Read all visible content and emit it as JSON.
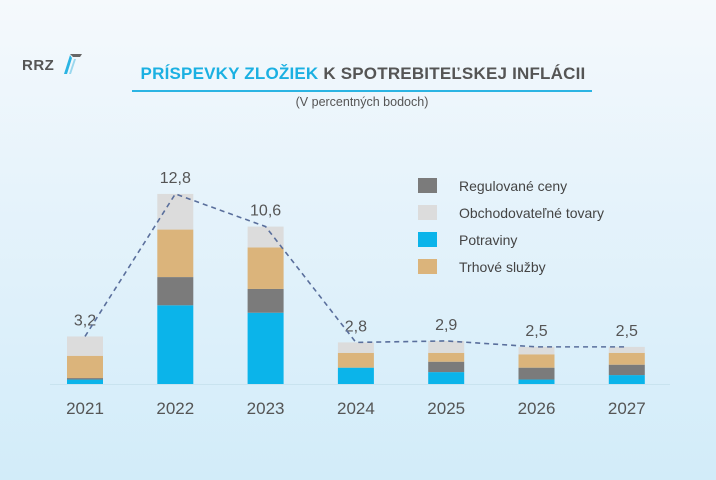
{
  "logo": {
    "text": "RRZ"
  },
  "title": {
    "highlight": "PRÍSPEVKY ZLOŽIEK",
    "rest": "K SPOTREBITEĽSKEJ INFLÁCII"
  },
  "subtitle": "(V percentných bodoch)",
  "chart_data": {
    "type": "bar",
    "stacked": true,
    "title": "PRÍSPEVKY ZLOŽIEK K SPOTREBITEĽSKEJ INFLÁCII",
    "subtitle": "(V percentných bodoch)",
    "categories": [
      "2021",
      "2022",
      "2023",
      "2024",
      "2025",
      "2026",
      "2027"
    ],
    "series": [
      {
        "name": "Potraviny",
        "color": "#0bb4ea",
        "values": [
          0.3,
          5.3,
          4.8,
          1.1,
          0.8,
          0.3,
          0.6
        ]
      },
      {
        "name": "Regulované ceny",
        "color": "#7b7b7b",
        "values": [
          0.1,
          1.9,
          1.6,
          0.0,
          0.7,
          0.8,
          0.7
        ]
      },
      {
        "name": "Trhové služby",
        "color": "#dbb47b",
        "values": [
          1.5,
          3.2,
          2.8,
          1.0,
          0.6,
          0.9,
          0.8
        ]
      },
      {
        "name": "Obchodovateľné tovary",
        "color": "#dcdcdc",
        "values": [
          1.3,
          2.4,
          1.4,
          0.7,
          0.8,
          0.5,
          0.4
        ]
      }
    ],
    "totals": [
      3.2,
      12.8,
      10.6,
      2.8,
      2.9,
      2.5,
      2.5
    ],
    "total_labels": [
      "3,2",
      "12,8",
      "10,6",
      "2,8",
      "2,9",
      "2,5",
      "2,5"
    ],
    "legend_order": [
      "Regulované ceny",
      "Obchodovateľné tovary",
      "Potraviny",
      "Trhové služby"
    ],
    "legend_position": "top-right",
    "ylim": [
      0,
      13
    ],
    "grid": false
  }
}
